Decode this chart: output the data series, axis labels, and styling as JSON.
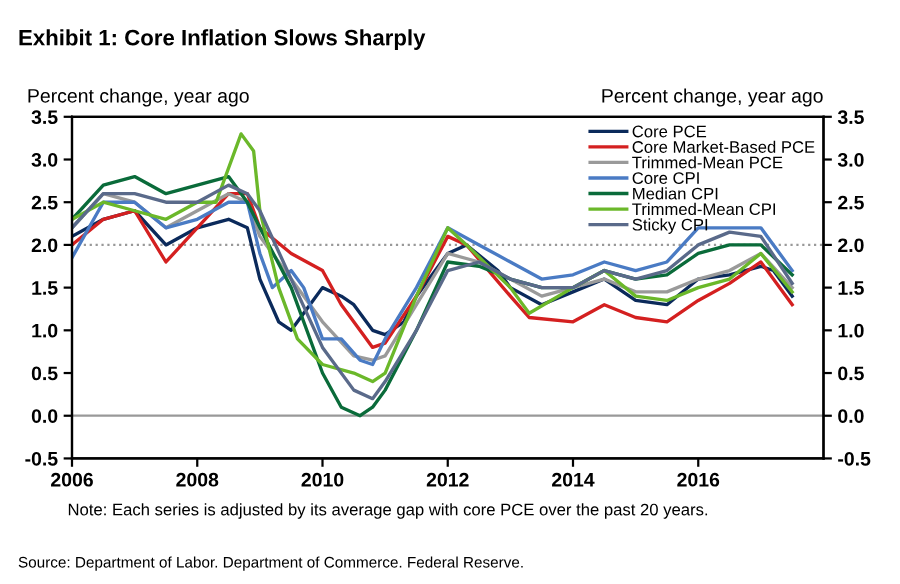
{
  "chart_data": {
    "type": "line",
    "title": "Exhibit 1: Core Inflation Slows Sharply",
    "ylabel": "Percent change, year ago",
    "y2label": "Percent change, year ago",
    "annotations": [
      "Note: Each series is adjusted by its average gap with core PCE over the past 20 years.",
      "Source: Department of Labor. Department of Commerce. Federal Reserve."
    ],
    "xlim": [
      2006,
      2018
    ],
    "xticks": [
      2006,
      2008,
      2010,
      2012,
      2014,
      2016
    ],
    "ylim": [
      -0.5,
      3.5
    ],
    "yticks": [
      {
        "value": -0.5,
        "label": "-0.5"
      },
      {
        "value": 0,
        "label": "0.0"
      },
      {
        "value": 0.5,
        "label": "0.5"
      },
      {
        "value": 1,
        "label": "1.0"
      },
      {
        "value": 1.5,
        "label": "1.5"
      },
      {
        "value": 2,
        "label": "2.0"
      },
      {
        "value": 2.5,
        "label": "2.5"
      },
      {
        "value": 3,
        "label": "3.0"
      },
      {
        "value": 3.5,
        "label": "3.5"
      }
    ],
    "y2lim": [
      -0.5,
      3.5
    ],
    "y2ticks": [
      {
        "value": -0.5,
        "label": "-0.5"
      },
      {
        "value": 0,
        "label": "0.0"
      },
      {
        "value": 0.5,
        "label": "0.5"
      },
      {
        "value": 1,
        "label": "1.0"
      },
      {
        "value": 1.5,
        "label": "1.5"
      },
      {
        "value": 2,
        "label": "2.0"
      },
      {
        "value": 2.5,
        "label": "2.5"
      },
      {
        "value": 3,
        "label": "3.0"
      },
      {
        "value": 3.5,
        "label": "3.5"
      }
    ],
    "ref_lines": [
      {
        "axis": "y",
        "value": 2,
        "color": "#999999",
        "line_style": "dotted"
      },
      {
        "axis": "y",
        "value": 0,
        "color": "#999999",
        "line_style": "solid"
      }
    ],
    "grid": false,
    "legend": "top right",
    "marker": "none",
    "line_style": "solid",
    "series": [
      {
        "name": "Core PCE",
        "color": "#0b2a5b",
        "x": [
          2006,
          2006.5,
          2007,
          2007.5,
          2008,
          2008.5,
          2008.8,
          2009,
          2009.3,
          2009.5,
          2009.8,
          2010,
          2010.3,
          2010.5,
          2010.8,
          2011,
          2011.3,
          2011.5,
          2012,
          2012.3,
          2012.8,
          2013,
          2013.5,
          2014,
          2014.5,
          2015,
          2015.5,
          2016,
          2016.5,
          2017,
          2017.2,
          2017.5
        ],
        "values": [
          2.1,
          2.3,
          2.4,
          2.0,
          2.2,
          2.3,
          2.2,
          1.6,
          1.1,
          1.0,
          1.3,
          1.5,
          1.4,
          1.3,
          1.0,
          0.95,
          1.1,
          1.4,
          1.9,
          2.0,
          1.7,
          1.5,
          1.3,
          1.45,
          1.6,
          1.35,
          1.3,
          1.6,
          1.65,
          1.75,
          1.7,
          1.4
        ]
      },
      {
        "name": "Core Market-Based PCE",
        "color": "#d42020",
        "x": [
          2006,
          2006.5,
          2007,
          2007.5,
          2008,
          2008.5,
          2008.8,
          2009,
          2009.5,
          2010,
          2010.3,
          2010.8,
          2011,
          2011.5,
          2012,
          2012.3,
          2013,
          2013.3,
          2014,
          2014.5,
          2015,
          2015.5,
          2016,
          2016.5,
          2017,
          2017.5
        ],
        "values": [
          2.0,
          2.3,
          2.4,
          1.8,
          2.2,
          2.6,
          2.6,
          2.2,
          1.9,
          1.7,
          1.3,
          0.8,
          0.85,
          1.4,
          2.1,
          2.0,
          1.4,
          1.15,
          1.1,
          1.3,
          1.15,
          1.1,
          1.35,
          1.55,
          1.8,
          1.3
        ]
      },
      {
        "name": "Trimmed-Mean PCE",
        "color": "#9a9a9a",
        "x": [
          2006,
          2006.5,
          2007,
          2007.5,
          2008,
          2008.5,
          2008.8,
          2009,
          2009.5,
          2010,
          2010.5,
          2010.8,
          2011,
          2011.5,
          2012,
          2012.5,
          2013,
          2013.5,
          2014,
          2014.5,
          2015,
          2015.5,
          2016,
          2016.5,
          2017,
          2017.5
        ],
        "values": [
          2.2,
          2.6,
          2.5,
          2.2,
          2.4,
          2.6,
          2.5,
          2.1,
          1.6,
          1.1,
          0.7,
          0.65,
          0.7,
          1.3,
          1.9,
          1.8,
          1.6,
          1.4,
          1.5,
          1.6,
          1.45,
          1.45,
          1.6,
          1.7,
          1.9,
          1.5
        ]
      },
      {
        "name": "Core CPI",
        "color": "#4a7bc4",
        "x": [
          2006,
          2006.5,
          2007,
          2007.5,
          2008,
          2008.5,
          2008.8,
          2009,
          2009.2,
          2009.5,
          2009.7,
          2010,
          2010.3,
          2010.6,
          2010.8,
          2011,
          2011.5,
          2012,
          2012.5,
          2013,
          2013.5,
          2014,
          2014.5,
          2015,
          2015.5,
          2016,
          2016.5,
          2017,
          2017.5
        ],
        "values": [
          1.85,
          2.5,
          2.5,
          2.2,
          2.3,
          2.5,
          2.5,
          1.9,
          1.5,
          1.7,
          1.5,
          0.9,
          0.9,
          0.65,
          0.6,
          0.9,
          1.5,
          2.2,
          2.0,
          1.8,
          1.6,
          1.65,
          1.8,
          1.7,
          1.8,
          2.2,
          2.2,
          2.2,
          1.7
        ]
      },
      {
        "name": "Median CPI",
        "color": "#0a6b3a",
        "x": [
          2006,
          2006.5,
          2007,
          2007.5,
          2008,
          2008.5,
          2008.8,
          2009,
          2009.5,
          2010,
          2010.3,
          2010.6,
          2010.8,
          2011,
          2011.5,
          2012,
          2012.5,
          2013,
          2013.5,
          2014,
          2014.5,
          2015,
          2015.5,
          2016,
          2016.5,
          2017,
          2017.5
        ],
        "values": [
          2.3,
          2.7,
          2.8,
          2.6,
          2.7,
          2.8,
          2.5,
          2.2,
          1.5,
          0.5,
          0.1,
          0.0,
          0.1,
          0.3,
          1.0,
          1.8,
          1.75,
          1.6,
          1.5,
          1.5,
          1.7,
          1.6,
          1.65,
          1.9,
          2.0,
          2.0,
          1.65
        ]
      },
      {
        "name": "Trimmed-Mean CPI",
        "color": "#6bb82a",
        "x": [
          2006,
          2006.5,
          2007,
          2007.5,
          2008,
          2008.3,
          2008.7,
          2008.9,
          2009,
          2009.3,
          2009.6,
          2010,
          2010.5,
          2010.8,
          2011,
          2011.5,
          2012,
          2012.3,
          2013,
          2013.3,
          2014,
          2014.5,
          2015,
          2015.5,
          2016,
          2016.5,
          2017,
          2017.5
        ],
        "values": [
          2.3,
          2.5,
          2.4,
          2.3,
          2.5,
          2.5,
          3.3,
          3.1,
          2.4,
          1.5,
          0.9,
          0.6,
          0.5,
          0.4,
          0.5,
          1.4,
          2.2,
          2.0,
          1.5,
          1.2,
          1.5,
          1.7,
          1.4,
          1.35,
          1.5,
          1.6,
          1.9,
          1.45
        ]
      },
      {
        "name": "Sticky CPI",
        "color": "#5a6a8a",
        "x": [
          2006,
          2006.5,
          2007,
          2007.5,
          2008,
          2008.5,
          2008.8,
          2009,
          2009.5,
          2010,
          2010.5,
          2010.8,
          2011,
          2011.5,
          2012,
          2012.5,
          2013,
          2013.5,
          2014,
          2014.5,
          2015,
          2015.5,
          2016,
          2016.5,
          2017,
          2017.5
        ],
        "values": [
          2.2,
          2.6,
          2.6,
          2.5,
          2.5,
          2.7,
          2.6,
          2.4,
          1.6,
          0.8,
          0.3,
          0.2,
          0.4,
          1.0,
          1.7,
          1.8,
          1.6,
          1.5,
          1.5,
          1.7,
          1.6,
          1.7,
          2.0,
          2.15,
          2.1,
          1.55
        ]
      }
    ]
  }
}
